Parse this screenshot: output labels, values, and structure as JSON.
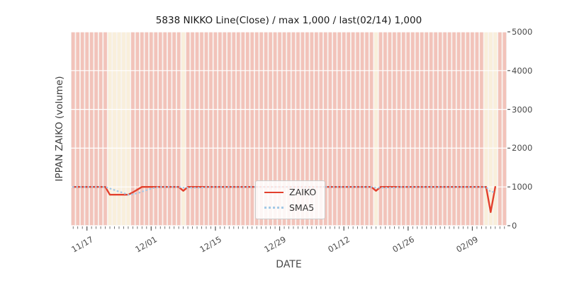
{
  "chart_data": {
    "type": "line",
    "title": "5838 NIKKO Line(Close) / max 1,000 / last(02/14) 1,000",
    "xlabel": "DATE",
    "ylabel": "IPPAN ZAIKO (volume)",
    "ylim": [
      0,
      5000
    ],
    "yticks": [
      0,
      1000,
      2000,
      3000,
      4000,
      5000
    ],
    "x_domain_days": 95,
    "x_start_date": "11/14",
    "xticks": [
      {
        "label": "11/17",
        "day": 3
      },
      {
        "label": "12/01",
        "day": 17
      },
      {
        "label": "12/15",
        "day": 31
      },
      {
        "label": "12/29",
        "day": 45
      },
      {
        "label": "01/12",
        "day": 59
      },
      {
        "label": "01/26",
        "day": 73
      },
      {
        "label": "02/09",
        "day": 87
      }
    ],
    "series": [
      {
        "name": "ZAIKO",
        "color": "#e2402d",
        "style": "solid",
        "points": [
          [
            0,
            1000
          ],
          [
            7,
            1000
          ],
          [
            8,
            800
          ],
          [
            12,
            800
          ],
          [
            13,
            860
          ],
          [
            15,
            1000
          ],
          [
            23,
            1000
          ],
          [
            24,
            900
          ],
          [
            25,
            1000
          ],
          [
            65,
            1000
          ],
          [
            66,
            900
          ],
          [
            67,
            1000
          ],
          [
            90,
            1000
          ],
          [
            91,
            350
          ],
          [
            92,
            1000
          ]
        ]
      },
      {
        "name": "SMA5",
        "color": "#a3c9e6",
        "style": "dotted",
        "window": 5,
        "derived_from": "ZAIKO"
      }
    ],
    "bands": {
      "default_color": "#f2c3ba",
      "highlight_color": "#f9efdb",
      "gap_color": "#f8f3f0",
      "plot_bg": "#e3e1e0",
      "highlight_days": [
        8,
        9,
        10,
        11,
        12,
        24,
        66,
        90,
        91,
        92
      ]
    },
    "grid": {
      "color": "#ffffff",
      "horizontal": true
    },
    "legend": {
      "position": "lower center",
      "entries": [
        "ZAIKO",
        "SMA5"
      ]
    },
    "axis": {
      "tick_color": "#555555",
      "label_color": "#4a4a4a"
    }
  }
}
